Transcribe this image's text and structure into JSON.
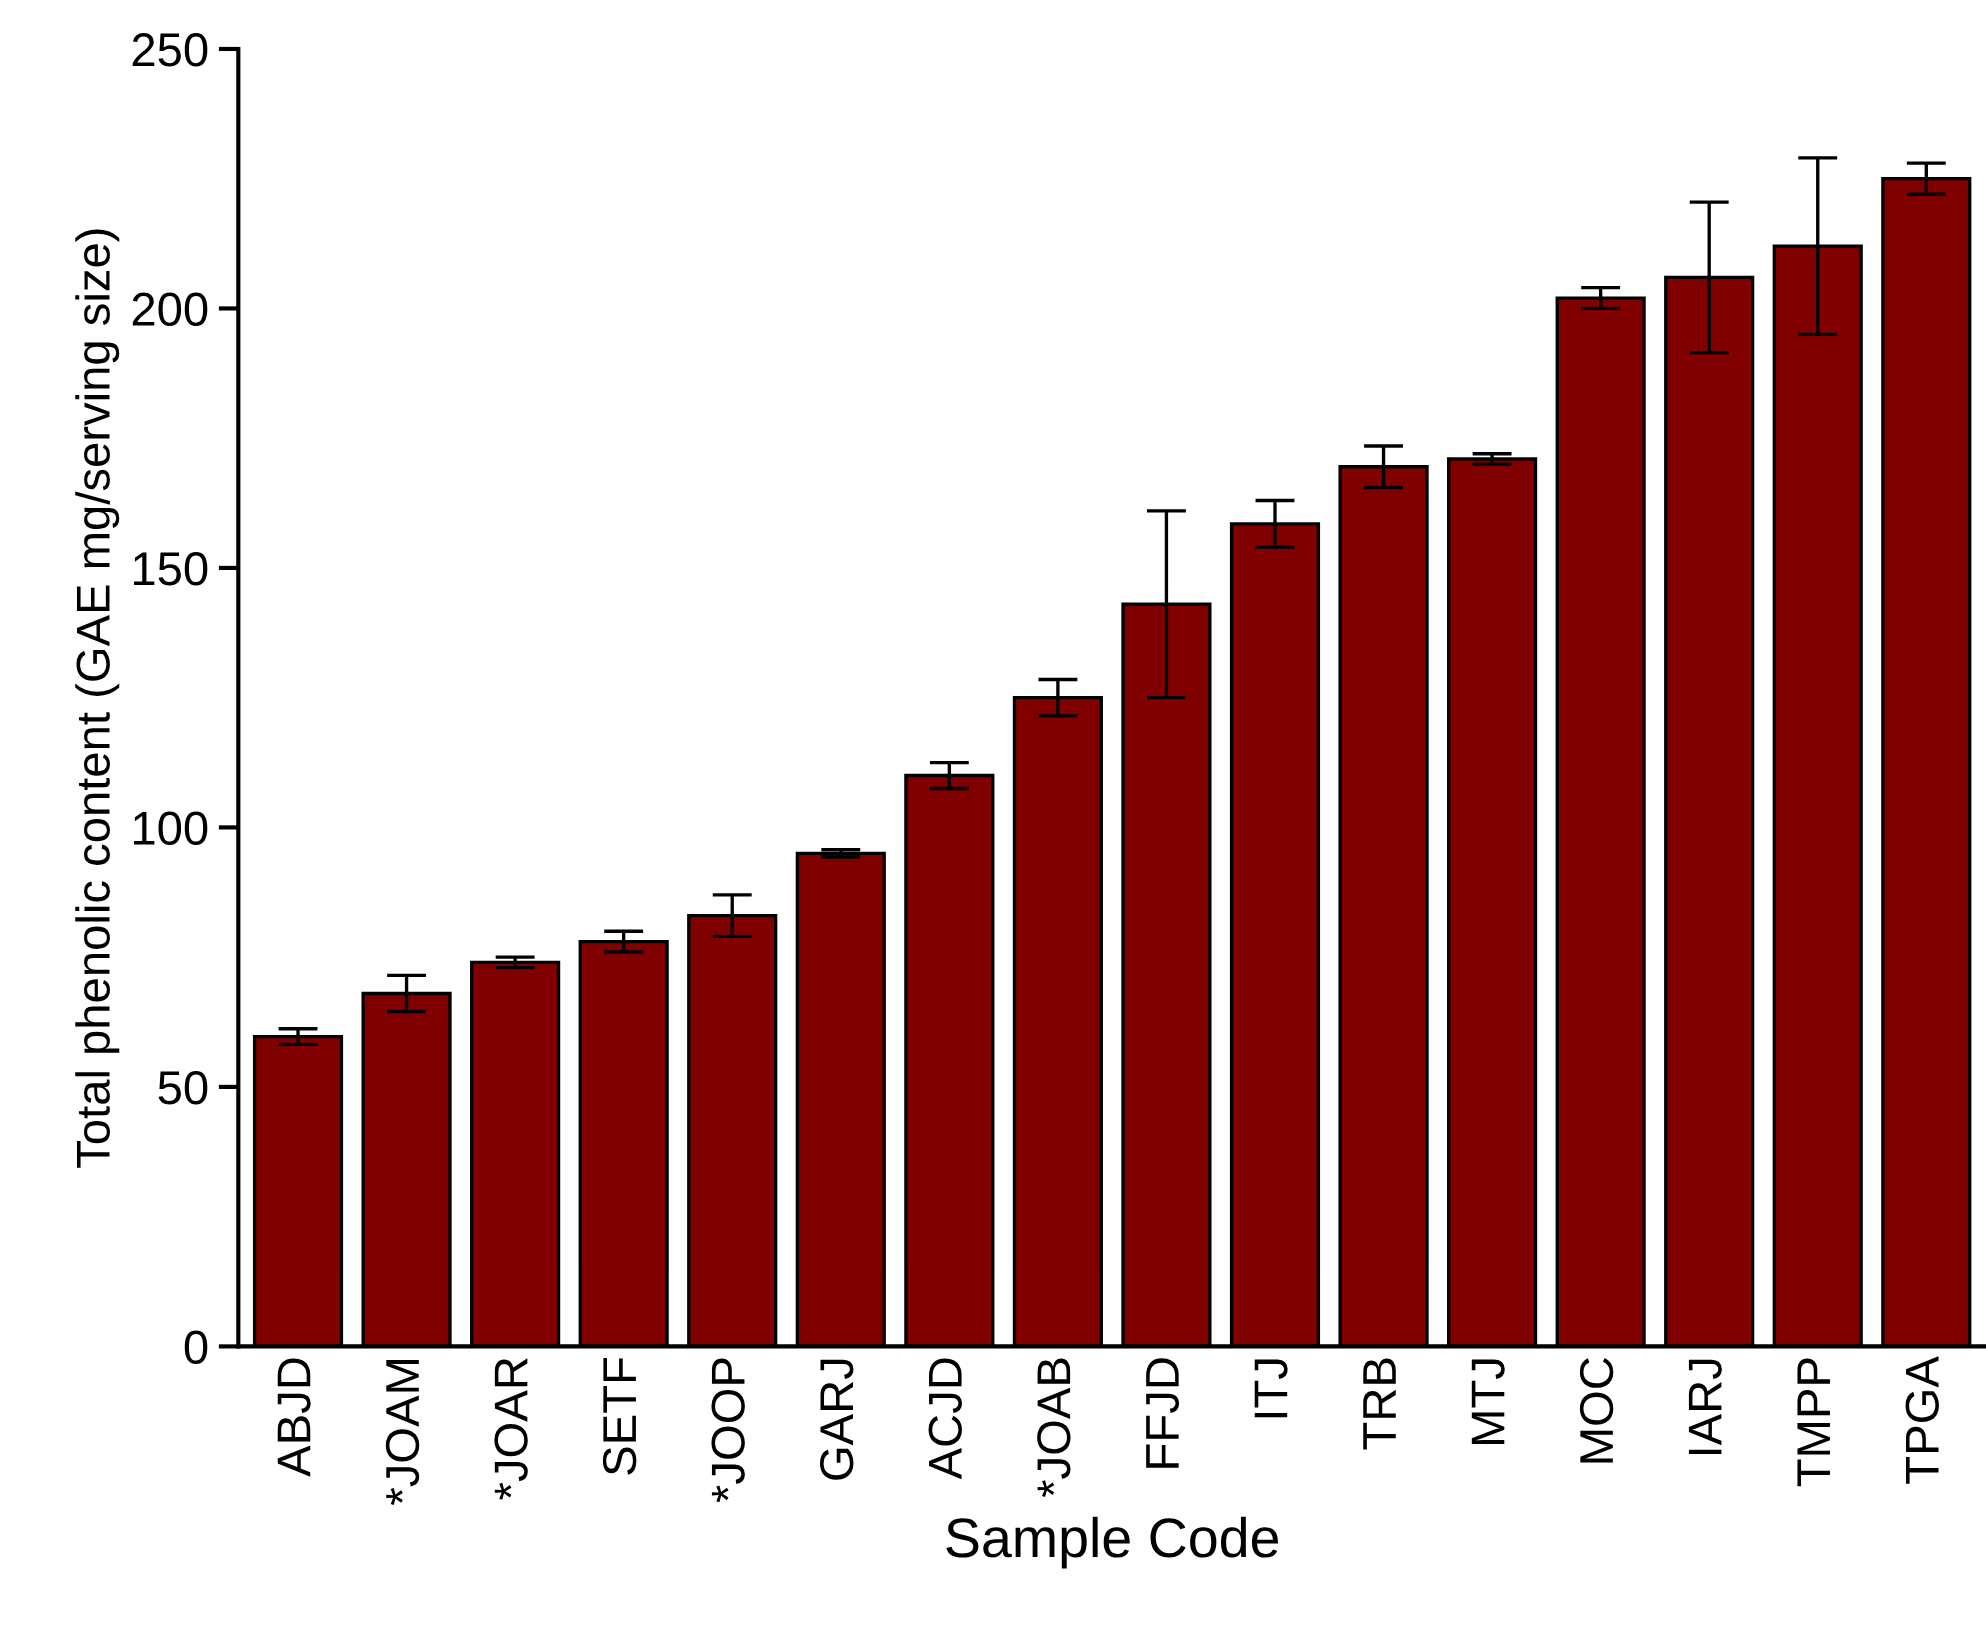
{
  "chart_data": {
    "type": "bar",
    "xlabel": "Sample Code",
    "ylabel": "Total phenolic content (GAE mg/serving size)",
    "categories": [
      "ABJD",
      "*JOAM",
      "*JOAR",
      "SETF",
      "*JOOP",
      "GARJ",
      "ACJD",
      "*JOAB",
      "FFJD",
      "ITJ",
      "TRB",
      "MTJ",
      "MOC",
      "IARJ",
      "TMPP",
      "TPGA"
    ],
    "values": [
      59.7,
      68,
      74,
      78,
      83,
      95,
      110,
      125,
      143,
      158.5,
      169.5,
      171,
      202,
      206,
      212,
      225
    ],
    "errors": [
      1.5,
      3.5,
      1,
      2,
      4,
      0.7,
      2.5,
      3.5,
      18,
      4.5,
      4,
      1,
      2,
      14.5,
      17,
      3
    ],
    "color": "#800000",
    "ylim": [
      0,
      250
    ],
    "yticks": [
      0,
      50,
      100,
      150,
      200,
      250
    ],
    "grid": false,
    "legend": false
  }
}
